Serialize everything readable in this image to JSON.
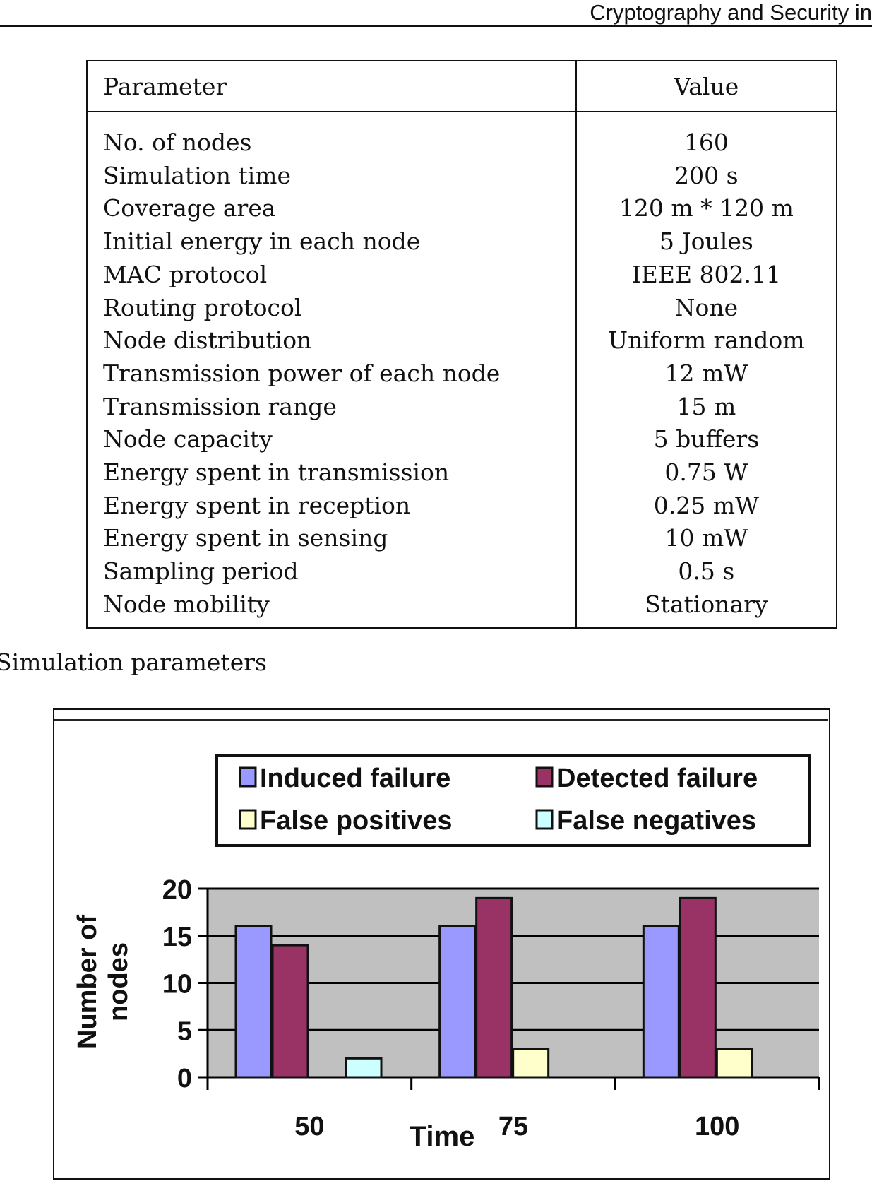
{
  "header": {
    "running_title": "Cryptography and Security in"
  },
  "table": {
    "columns": [
      "Parameter",
      "Value"
    ],
    "rows": [
      [
        "No. of nodes",
        "160"
      ],
      [
        "Simulation time",
        "200  s"
      ],
      [
        "Coverage area",
        "120 m * 120 m"
      ],
      [
        "Initial energy in each node",
        "5 Joules"
      ],
      [
        "MAC protocol",
        "IEEE 802.11"
      ],
      [
        "Routing protocol",
        "None"
      ],
      [
        "Node distribution",
        "Uniform random"
      ],
      [
        "Transmission power of each node",
        "12 mW"
      ],
      [
        "Transmission range",
        "15 m"
      ],
      [
        "Node capacity",
        "5 buffers"
      ],
      [
        "Energy spent in transmission",
        "0.75 W"
      ],
      [
        "Energy spent in reception",
        "0.25 mW"
      ],
      [
        "Energy spent in sensing",
        "10 mW"
      ],
      [
        "Sampling period",
        "0.5 s"
      ],
      [
        "Node mobility",
        "Stationary"
      ]
    ],
    "caption": "Simulation parameters"
  },
  "chart_data": {
    "type": "bar",
    "categories": [
      "50",
      "75",
      "100"
    ],
    "series": [
      {
        "name": "Induced failure",
        "values": [
          16,
          16,
          16
        ],
        "color": "#9999ff"
      },
      {
        "name": "Detected failure",
        "values": [
          14,
          19,
          19
        ],
        "color": "#993366"
      },
      {
        "name": "False positives",
        "values": [
          0,
          3,
          3
        ],
        "color": "#ffffcc"
      },
      {
        "name": "False negatives",
        "values": [
          2,
          0,
          0
        ],
        "color": "#ccffff"
      }
    ],
    "xlabel": "Time",
    "ylabel": [
      "Number of",
      "nodes"
    ],
    "ylim": [
      0,
      20
    ],
    "yticks": [
      "0",
      "5",
      "10",
      "15",
      "20"
    ],
    "grid": true,
    "plot_background": "#c0c0c0",
    "legend": "top"
  }
}
